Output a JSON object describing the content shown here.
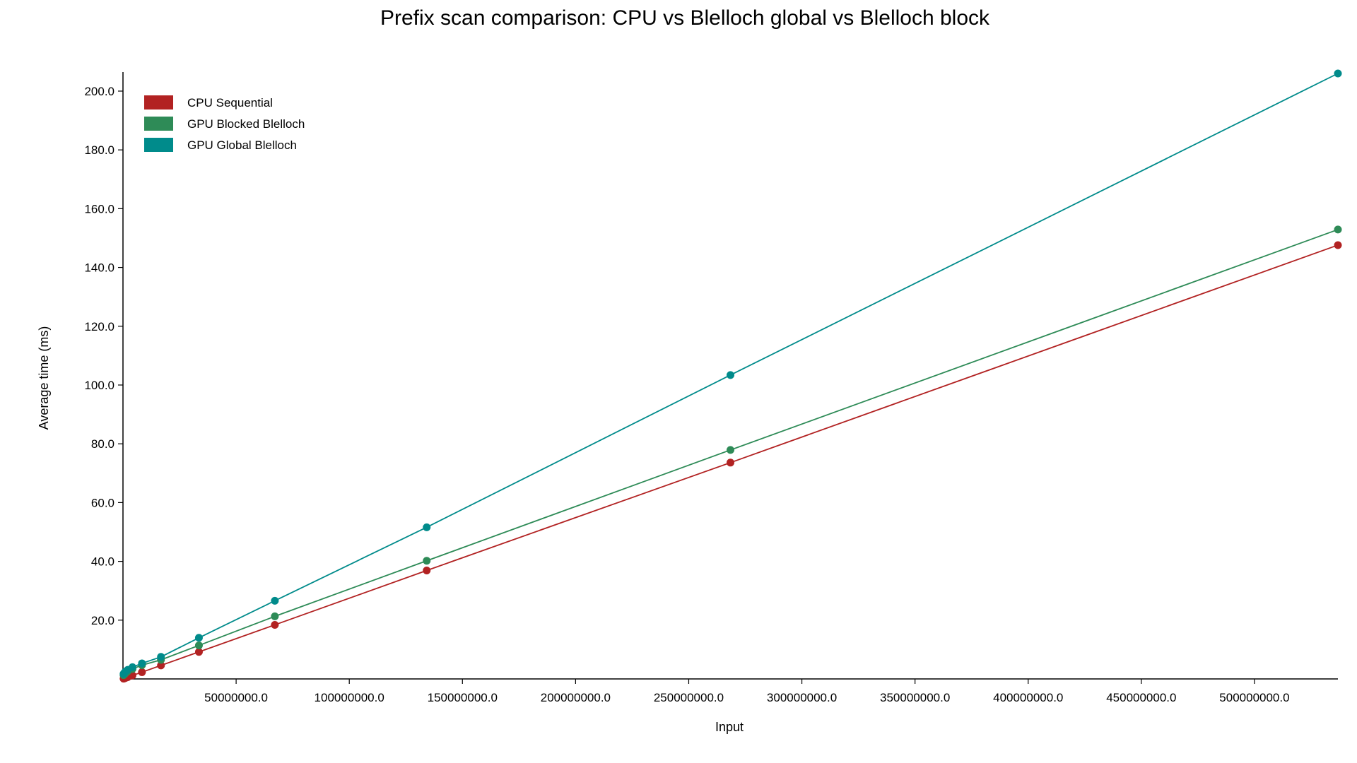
{
  "chart_data": {
    "type": "line",
    "title": "Prefix scan comparison: CPU vs Blelloch global vs Blelloch block",
    "xlabel": "Input",
    "ylabel": "Average time (ms)",
    "xlim": [
      0,
      536870912
    ],
    "ylim": [
      0,
      206
    ],
    "x_ticks": [
      50000000,
      100000000,
      150000000,
      200000000,
      250000000,
      300000000,
      350000000,
      400000000,
      450000000,
      500000000
    ],
    "x_tick_labels": [
      "50000000.0",
      "100000000.0",
      "150000000.0",
      "200000000.0",
      "250000000.0",
      "300000000.0",
      "350000000.0",
      "400000000.0",
      "450000000.0",
      "500000000.0"
    ],
    "y_ticks": [
      20,
      40,
      60,
      80,
      100,
      120,
      140,
      160,
      180,
      200
    ],
    "y_tick_labels": [
      "20.0",
      "40.0",
      "60.0",
      "80.0",
      "100.0",
      "120.0",
      "140.0",
      "160.0",
      "180.0",
      "200.0"
    ],
    "legend_position": "top-left",
    "x": [
      262144,
      524288,
      1048576,
      2097152,
      4194304,
      8388608,
      16777216,
      33554432,
      67108864,
      134217728,
      268435456,
      536870912
    ],
    "series": [
      {
        "name": "CPU Sequential",
        "color": "#b22222",
        "values": [
          0.1,
          0.15,
          0.3,
          0.6,
          1.2,
          2.3,
          4.6,
          9.2,
          18.4,
          36.9,
          73.6,
          147.6
        ]
      },
      {
        "name": "GPU Blocked Blelloch",
        "color": "#2e8b57",
        "values": [
          1.3,
          1.5,
          1.9,
          2.6,
          3.4,
          4.7,
          6.5,
          11.4,
          21.3,
          40.2,
          77.9,
          152.9
        ]
      },
      {
        "name": "GPU Global Blelloch",
        "color": "#008b8b",
        "values": [
          1.7,
          2.0,
          2.5,
          3.1,
          4.0,
          5.3,
          7.5,
          14.0,
          26.6,
          51.6,
          103.4,
          206.0
        ]
      }
    ]
  }
}
